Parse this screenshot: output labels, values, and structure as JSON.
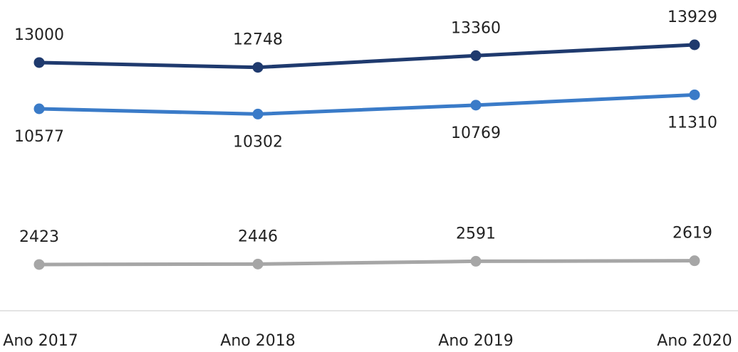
{
  "chart_data": {
    "type": "line",
    "categories": [
      "Ano 2017",
      "Ano 2018",
      "Ano 2019",
      "Ano 2020"
    ],
    "series": [
      {
        "color": "#1f3a6e",
        "values": [
          13000,
          12748,
          13360,
          13929
        ]
      },
      {
        "color": "#3a7bc8",
        "values": [
          10577,
          10302,
          10769,
          11310
        ]
      },
      {
        "color": "#a6a6a6",
        "values": [
          2423,
          2446,
          2591,
          2619
        ]
      }
    ]
  }
}
